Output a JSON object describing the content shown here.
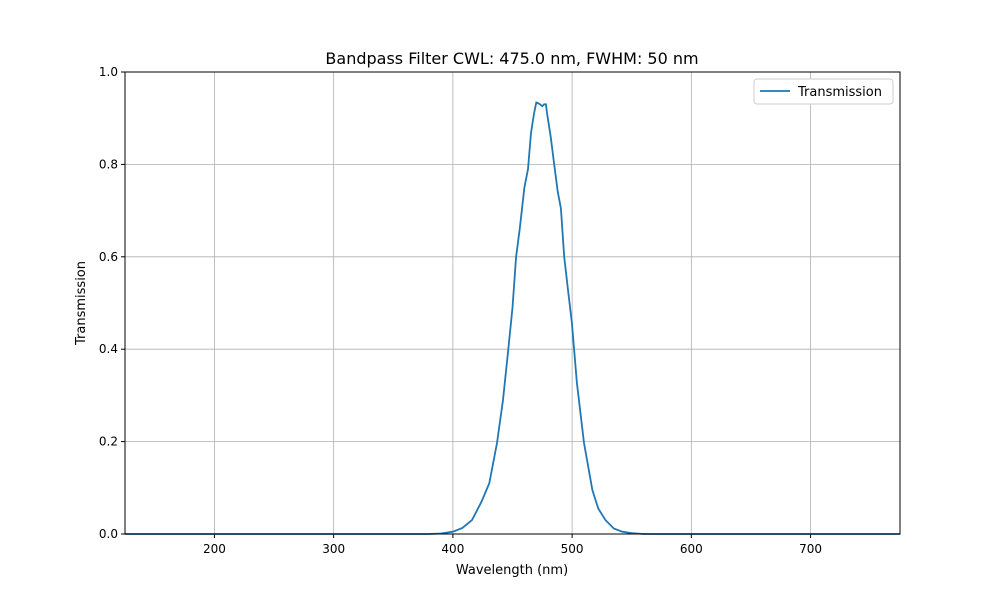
{
  "chart_data": {
    "type": "line",
    "title": "Bandpass Filter CWL: 475.0 nm, FWHM: 50 nm",
    "xlabel": "Wavelength (nm)",
    "ylabel": "Transmission",
    "xlim": [
      125,
      775
    ],
    "ylim": [
      0,
      1
    ],
    "xticks": [
      200,
      300,
      400,
      500,
      600,
      700
    ],
    "xtick_labels": [
      "200",
      "300",
      "400",
      "500",
      "600",
      "700"
    ],
    "yticks": [
      0,
      0.2,
      0.4,
      0.6,
      0.8,
      1.0
    ],
    "ytick_labels": [
      "0.0",
      "0.2",
      "0.4",
      "0.6",
      "0.8",
      "1.0"
    ],
    "grid": true,
    "legend_placement": "top-right",
    "series": [
      {
        "name": "Transmission",
        "color": "#1f77b4",
        "x": [
          125,
          300,
          380,
          390,
          400,
          408,
          416,
          424,
          430.5,
          437,
          442,
          446.5,
          450,
          453,
          456,
          460,
          463,
          465.5,
          468,
          470,
          472,
          475,
          476.5,
          478,
          479,
          482,
          485,
          488,
          490.6,
          493.4,
          496.5,
          499.8,
          504,
          510,
          517,
          522,
          528,
          535,
          542,
          550,
          560,
          600,
          775
        ],
        "y": [
          0,
          0,
          0,
          0.001,
          0.005,
          0.013,
          0.03,
          0.07,
          0.11,
          0.197,
          0.29,
          0.4,
          0.49,
          0.6,
          0.66,
          0.75,
          0.79,
          0.868,
          0.91,
          0.934,
          0.932,
          0.926,
          0.93,
          0.93,
          0.91,
          0.86,
          0.8,
          0.74,
          0.705,
          0.6,
          0.53,
          0.457,
          0.327,
          0.197,
          0.095,
          0.055,
          0.03,
          0.012,
          0.005,
          0.002,
          0,
          0,
          0
        ]
      }
    ]
  }
}
